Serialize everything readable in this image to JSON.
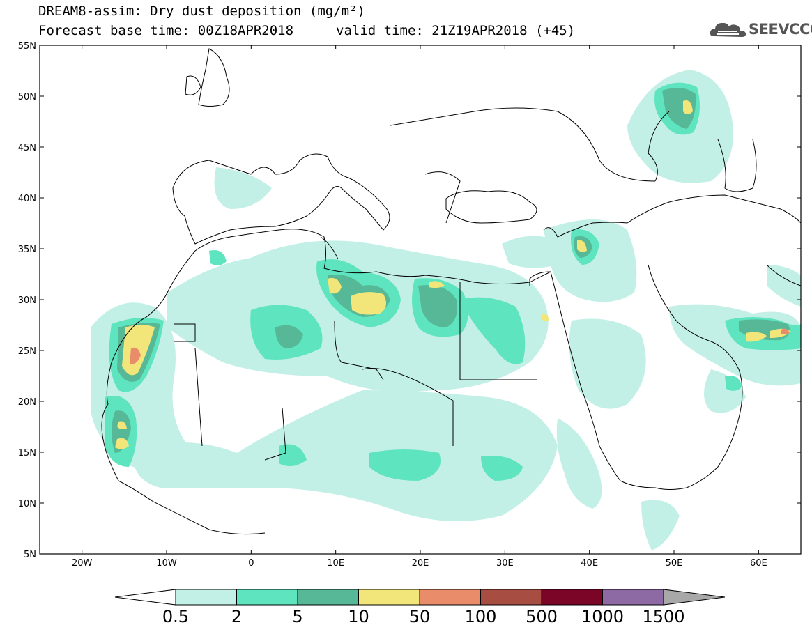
{
  "header": {
    "title": "DREAM8-assim: Dry dust deposition (mg/m²)",
    "base_time": "Forecast base time: 00Z18APR2018",
    "valid_time": "valid time: 21Z19APR2018 (+45)"
  },
  "logo": {
    "text": "SEEVCCC",
    "icon": "cloud-icon"
  },
  "map": {
    "lon_labels": [
      "20W",
      "10W",
      "0",
      "10E",
      "20E",
      "30E",
      "40E",
      "50E",
      "60E"
    ],
    "lat_labels": [
      "55N",
      "50N",
      "45N",
      "40N",
      "35N",
      "30N",
      "25N",
      "20N",
      "15N",
      "10N",
      "5N"
    ],
    "extent": {
      "lon": [
        -25,
        65
      ],
      "lat": [
        5,
        55
      ]
    }
  },
  "legend": {
    "labels": [
      "0.5",
      "2",
      "5",
      "10",
      "50",
      "100",
      "500",
      "1000",
      "1500"
    ],
    "colors": [
      "#c3f0e6",
      "#5fe4c0",
      "#56b896",
      "#f2e67a",
      "#e98c6a",
      "#a84d42",
      "#7a0526",
      "#8e6aa4",
      "#a8a8a8"
    ]
  }
}
